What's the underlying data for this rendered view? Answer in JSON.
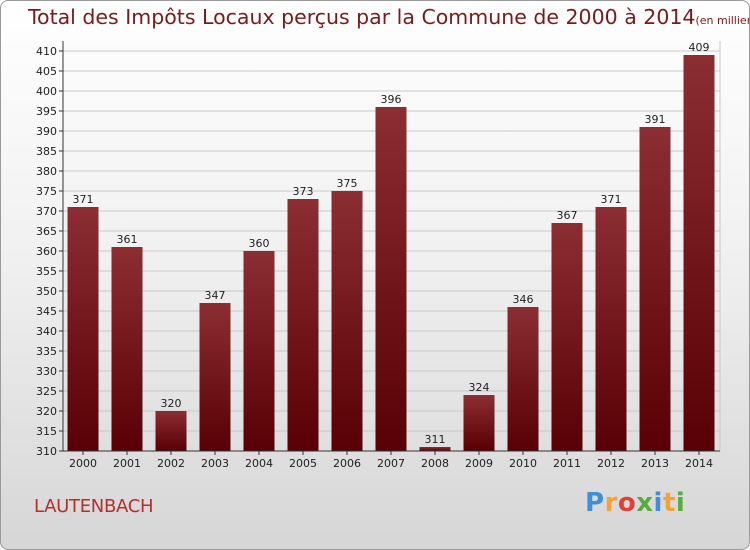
{
  "title": "Total des Impôts Locaux perçus par la Commune de 2000 à 2014",
  "unit_note": "(en milliers d'€)",
  "commune": "LAUTENBACH",
  "brand": {
    "letters": [
      "P",
      "r",
      "o",
      "x",
      "i",
      "t",
      "i"
    ],
    "colors": [
      "#3f8fd6",
      "#f2a33a",
      "#e04035",
      "#5aab3e",
      "#3f8fd6",
      "#f2a33a",
      "#5aab3e"
    ]
  },
  "colors": {
    "bar_top": "#8b2e33",
    "bar_bottom": "#580005",
    "axis": "#333333",
    "grid": "#c8c8c8",
    "title": "#7a1a1a"
  },
  "chart_data": {
    "type": "bar",
    "title": "Total des Impôts Locaux perçus par la Commune de 2000 à 2014",
    "xlabel": "",
    "ylabel": "en milliers d'€",
    "categories": [
      "2000",
      "2001",
      "2002",
      "2003",
      "2004",
      "2005",
      "2006",
      "2007",
      "2008",
      "2009",
      "2010",
      "2011",
      "2012",
      "2013",
      "2014"
    ],
    "values": [
      371,
      361,
      320,
      347,
      360,
      373,
      375,
      396,
      311,
      324,
      346,
      367,
      371,
      391,
      409
    ],
    "ylim": [
      310,
      410
    ],
    "ytick_step": 5,
    "grid": true
  }
}
